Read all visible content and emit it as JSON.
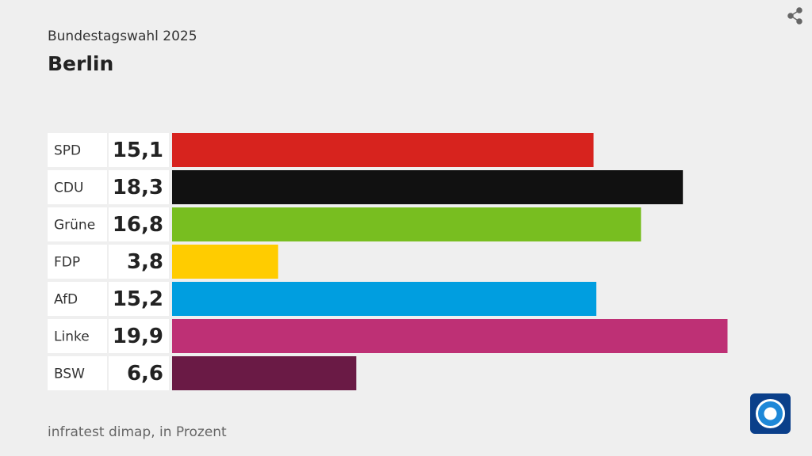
{
  "chart_data": {
    "type": "bar",
    "orientation": "horizontal",
    "subtitle": "Bundestagswahl 2025",
    "title": "Berlin",
    "categories": [
      "SPD",
      "CDU",
      "Grüne",
      "FDP",
      "AfD",
      "Linke",
      "BSW"
    ],
    "values": [
      15.1,
      18.3,
      16.8,
      3.8,
      15.2,
      19.9,
      6.6
    ],
    "value_labels": [
      "15,1",
      "18,3",
      "16,8",
      "3,8",
      "15,2",
      "19,9",
      "6,6"
    ],
    "colors": [
      "#d7231e",
      "#111111",
      "#78be20",
      "#ffcc00",
      "#009ee0",
      "#be3075",
      "#6a1a45"
    ],
    "source": "infratest dimap, in Prozent"
  }
}
